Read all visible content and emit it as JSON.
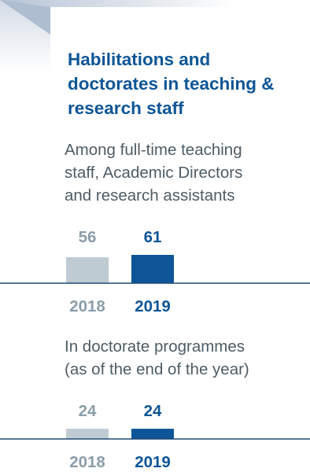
{
  "colors": {
    "dark_blue": "#0d5596",
    "light_gray": "#bfcbd3",
    "label_gray": "#8a9da9",
    "text_gray": "#4e5c66",
    "baseline": "#1e4a76",
    "corner_light": "#e7ebf1",
    "corner_mid": "#d6dde8",
    "corner_dark": "#b1bfd2"
  },
  "header": {
    "title": "Habilitations and\ndoctorates in teaching &\nresearch staff"
  },
  "sections": [
    {
      "subtitle": "Among full-time teaching\nstaff, Academic Directors\nand research assistants"
    },
    {
      "subtitle": "In doctorate programmes\n(as of the end of the year)"
    }
  ],
  "chart_data": [
    {
      "type": "bar",
      "categories": [
        "2018",
        "2019"
      ],
      "values": [
        56,
        61
      ],
      "value_labels": [
        "56",
        "61"
      ],
      "legend": "none",
      "grid": false
    },
    {
      "type": "bar",
      "categories": [
        "2018",
        "2019"
      ],
      "values": [
        24,
        24
      ],
      "value_labels": [
        "24",
        "24"
      ],
      "legend": "none",
      "grid": false
    }
  ]
}
